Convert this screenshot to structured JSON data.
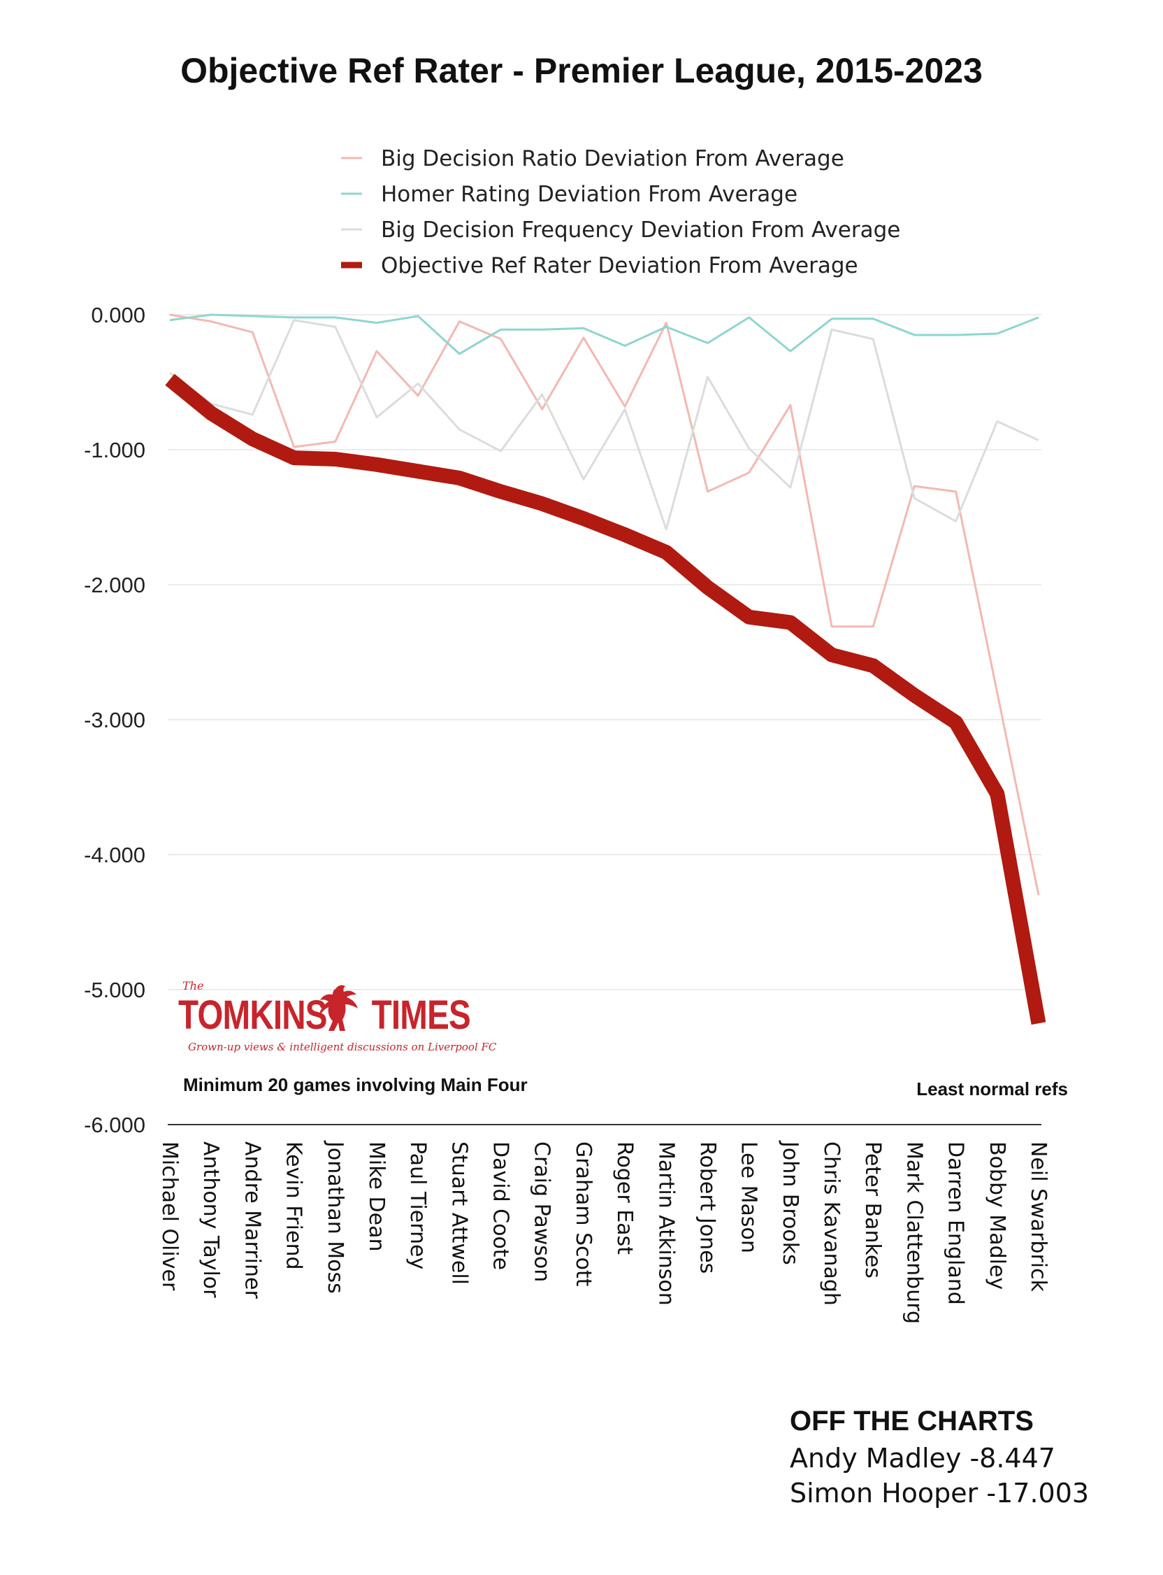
{
  "chart_data": {
    "type": "line",
    "title": "Objective Ref Rater - Premier League, 2015-2023",
    "xlabel": "",
    "ylabel": "",
    "ylim": [
      -6,
      0
    ],
    "yticks": [
      "0.000",
      "-1.000",
      "-2.000",
      "-3.000",
      "-4.000",
      "-5.000",
      "-6.000"
    ],
    "ytick_values": [
      0,
      -1,
      -2,
      -3,
      -4,
      -5,
      -6
    ],
    "grid": true,
    "legend_position": "top",
    "categories": [
      "Michael Oliver",
      "Anthony Taylor",
      "Andre Marriner",
      "Kevin Friend",
      "Jonathan Moss",
      "Mike Dean",
      "Paul Tierney",
      "Stuart Attwell",
      "David Coote",
      "Craig Pawson",
      "Graham Scott",
      "Roger East",
      "Martin Atkinson",
      "Robert Jones",
      "Lee Mason",
      "John Brooks",
      "Chris Kavanagh",
      "Peter Bankes",
      "Mark Clattenburg",
      "Darren England",
      "Bobby Madley",
      "Neil Swarbrick"
    ],
    "series": [
      {
        "name": "Big Decision Ratio Deviation From Average",
        "color": "#f4b8b2",
        "width": 3,
        "values": [
          0.0,
          -0.05,
          -0.13,
          -0.98,
          -0.94,
          -0.27,
          -0.6,
          -0.05,
          -0.18,
          -0.7,
          -0.17,
          -0.68,
          -0.06,
          -1.31,
          -1.17,
          -0.67,
          -2.31,
          -2.31,
          -1.27,
          -1.31,
          -2.8,
          -4.3
        ]
      },
      {
        "name": "Homer Rating Deviation From Average",
        "color": "#8ed6cf",
        "width": 3,
        "values": [
          -0.04,
          0.0,
          -0.01,
          -0.02,
          -0.02,
          -0.06,
          -0.01,
          -0.29,
          -0.11,
          -0.11,
          -0.1,
          -0.23,
          -0.09,
          -0.21,
          -0.02,
          -0.27,
          -0.03,
          -0.03,
          -0.15,
          -0.15,
          -0.14,
          -0.02
        ]
      },
      {
        "name": "Big Decision Frequency Deviation From Average",
        "color": "#dcdcdc",
        "width": 3,
        "values": [
          -0.43,
          -0.66,
          -0.74,
          -0.04,
          -0.09,
          -0.76,
          -0.51,
          -0.85,
          -1.01,
          -0.59,
          -1.22,
          -0.7,
          -1.59,
          -0.46,
          -0.99,
          -1.28,
          -0.11,
          -0.18,
          -1.36,
          -1.53,
          -0.79,
          -0.93
        ]
      },
      {
        "name": "Objective Ref Rater Deviation From Average",
        "color": "#b01a10",
        "width": 21,
        "values": [
          -0.48,
          -0.73,
          -0.92,
          -1.06,
          -1.07,
          -1.11,
          -1.16,
          -1.21,
          -1.31,
          -1.4,
          -1.51,
          -1.63,
          -1.76,
          -2.02,
          -2.24,
          -2.28,
          -2.52,
          -2.6,
          -2.82,
          -3.02,
          -3.55,
          -5.25
        ]
      }
    ]
  },
  "annotations": {
    "left_note": "Minimum 20 games involving Main Four",
    "right_note": "Least normal refs"
  },
  "logo": {
    "the": "The",
    "name": "TOMKINS",
    "name2": "TIMES",
    "tagline": "Grown-up views & intelligent discussions on Liverpool FC",
    "color": "#c8242b",
    "icon": "liver-bird-icon"
  },
  "off_the_charts": {
    "heading": "OFF THE CHARTS",
    "lines": [
      "Andy Madley -8.447",
      "Simon Hooper -17.003"
    ]
  }
}
